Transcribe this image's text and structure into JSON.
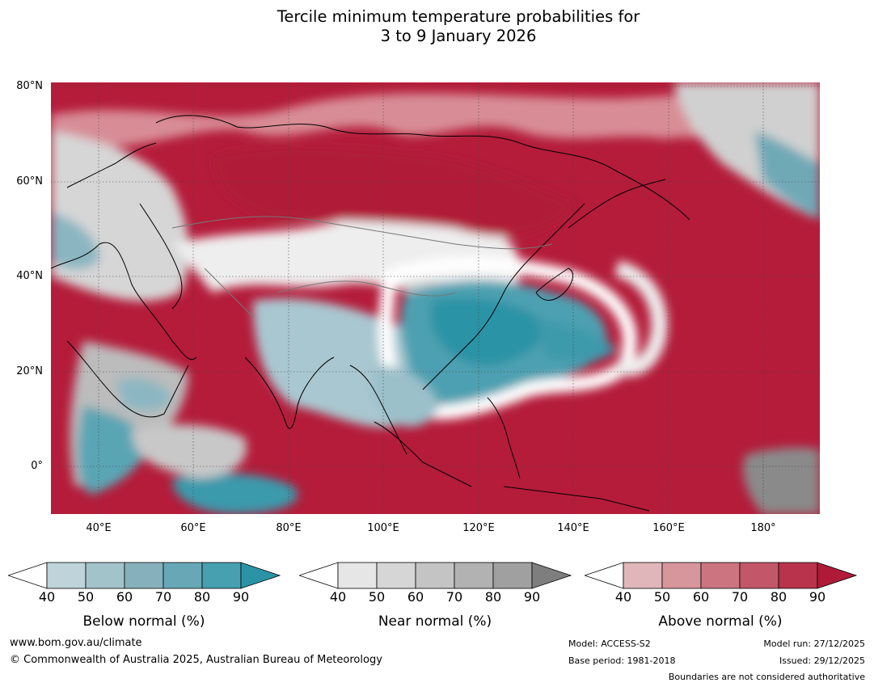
{
  "title_line1": "Tercile minimum temperature probabilities for",
  "title_line2": "3 to 9 January 2026",
  "map": {
    "lat_labels": [
      "80°N",
      "60°N",
      "40°N",
      "20°N",
      "0°"
    ],
    "lon_labels": [
      "40°E",
      "60°E",
      "80°E",
      "100°E",
      "120°E",
      "140°E",
      "160°E",
      "180°"
    ],
    "colors": {
      "ocean_above": "#b41c3a",
      "above_mid": "#c75565",
      "above_low": "#dba0a8",
      "near_low": "#dedede",
      "near_mid": "#bfbfbf",
      "near_high": "#8a8a8a",
      "below_low": "#b7d0d8",
      "below_mid": "#7fb1bd",
      "below_high": "#2e96a8",
      "white": "#ffffff",
      "coast": "#000000",
      "border": "#777777"
    }
  },
  "legends": {
    "below": {
      "caption": "Below normal (%)",
      "ticks": [
        "40",
        "50",
        "60",
        "70",
        "80",
        "90"
      ],
      "colors": [
        "#ffffff",
        "#bfd3da",
        "#a3c3cb",
        "#86b1bc",
        "#68a8b6",
        "#46a0b0",
        "#2b93a6"
      ]
    },
    "near": {
      "caption": "Near normal (%)",
      "ticks": [
        "40",
        "50",
        "60",
        "70",
        "80",
        "90"
      ],
      "colors": [
        "#ffffff",
        "#e6e6e6",
        "#d6d6d6",
        "#c4c4c4",
        "#b2b2b2",
        "#a0a0a0",
        "#7e7e7e"
      ]
    },
    "above": {
      "caption": "Above normal (%)",
      "ticks": [
        "40",
        "50",
        "60",
        "70",
        "80",
        "90"
      ],
      "colors": [
        "#ffffff",
        "#e0b6bb",
        "#d7959c",
        "#cc7581",
        "#c3576a",
        "#b8334b",
        "#b01a38"
      ]
    }
  },
  "footer": {
    "site": "www.bom.gov.au/climate",
    "copyright": "© Commonwealth of Australia 2025, Australian Bureau of Meteorology",
    "model": "Model: ACCESS-S2",
    "base_period": "Base period: 1981-2018",
    "model_run": "Model run: 27/12/2025",
    "issued": "Issued: 29/12/2025",
    "disclaimer": "Boundaries are not considered authoritative"
  }
}
